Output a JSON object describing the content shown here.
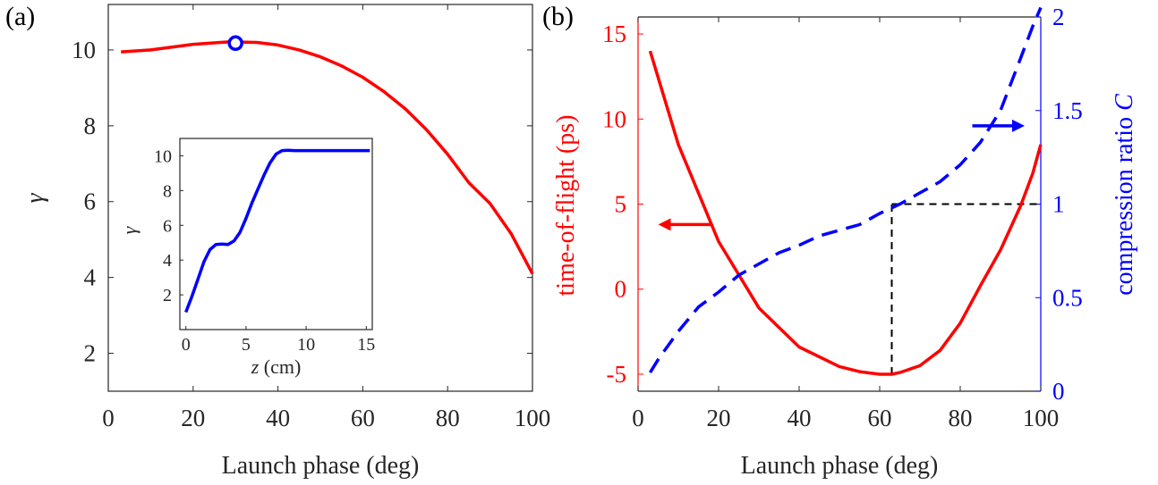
{
  "panels": {
    "a": {
      "label": "(a)"
    },
    "b": {
      "label": "(b)"
    }
  },
  "chart_data": [
    {
      "id": "a-main",
      "type": "line",
      "xlabel": "Launch phase (deg)",
      "ylabel": "γ",
      "xlim": [
        0,
        100
      ],
      "ylim": [
        1,
        11.2
      ],
      "xticks": [
        "0",
        "20",
        "40",
        "60",
        "80",
        "100"
      ],
      "yticks": [
        "2",
        "4",
        "6",
        "8",
        "10"
      ],
      "grid": false,
      "series": [
        {
          "color": "#ff0000",
          "x": [
            3,
            10,
            20,
            28,
            30,
            35,
            40,
            45,
            50,
            55,
            60,
            65,
            70,
            75,
            80,
            85,
            90,
            95,
            100
          ],
          "y": [
            9.95,
            10.0,
            10.15,
            10.21,
            10.21,
            10.2,
            10.13,
            10.0,
            9.82,
            9.58,
            9.28,
            8.9,
            8.45,
            7.9,
            7.25,
            6.5,
            5.95,
            5.15,
            4.1
          ]
        }
      ],
      "marker": {
        "x": 30,
        "y": 10.18,
        "color": "#0000ff",
        "shape": "open-circle"
      }
    },
    {
      "id": "a-inset",
      "type": "line",
      "xlabel_italic": "z",
      "xlabel_rest": " (cm)",
      "ylabel": "γ",
      "xlim": [
        -0.5,
        15.5
      ],
      "ylim": [
        0,
        11
      ],
      "xticks": [
        "0",
        "5",
        "10",
        "15"
      ],
      "yticks": [
        "2",
        "4",
        "6",
        "8",
        "10"
      ],
      "grid": false,
      "series": [
        {
          "color": "#0000ff",
          "x": [
            0,
            0.5,
            1,
            1.5,
            2,
            2.5,
            3,
            3.5,
            4,
            4.5,
            5,
            5.5,
            6,
            6.5,
            7,
            7.5,
            8,
            8.5,
            9,
            10,
            12,
            15.3
          ],
          "y": [
            1.0,
            1.9,
            2.9,
            3.9,
            4.6,
            4.9,
            4.92,
            4.9,
            5.1,
            5.6,
            6.4,
            7.3,
            8.1,
            8.9,
            9.6,
            10.1,
            10.3,
            10.32,
            10.3,
            10.3,
            10.3,
            10.3
          ]
        }
      ]
    },
    {
      "id": "b-main",
      "type": "line",
      "xlabel": "Launch phase (deg)",
      "ylabel_left": "time-of-flight (ps)",
      "ylabel_right_text": "compression ratio ",
      "ylabel_right_italic": "C",
      "xlim": [
        0,
        100
      ],
      "ylim_left": [
        -6,
        16
      ],
      "ylim_right": [
        0,
        2
      ],
      "xticks": [
        "0",
        "20",
        "40",
        "60",
        "80",
        "100"
      ],
      "yticks_left": [
        "-5",
        "0",
        "5",
        "10",
        "15"
      ],
      "yticks_right": [
        "0",
        "0.5",
        "1",
        "1.5",
        "2"
      ],
      "left_axis_color": "#ff0000",
      "right_axis_color": "#0000ff",
      "grid": false,
      "series": [
        {
          "axis": "left",
          "color": "#ff0000",
          "dash": "solid",
          "x": [
            3,
            10,
            20,
            30,
            40,
            50,
            55,
            60,
            63,
            65,
            70,
            75,
            80,
            85,
            90,
            95,
            98,
            100
          ],
          "y": [
            14,
            8.5,
            2.8,
            -1.1,
            -3.4,
            -4.55,
            -4.85,
            -5.0,
            -5.0,
            -4.9,
            -4.5,
            -3.6,
            -2.0,
            0.2,
            2.3,
            4.9,
            6.8,
            8.5
          ]
        },
        {
          "axis": "right",
          "color": "#0000ff",
          "dash": "dashed",
          "x": [
            3,
            5,
            10,
            15,
            20,
            25,
            30,
            35,
            40,
            45,
            50,
            55,
            60,
            65,
            70,
            75,
            80,
            85,
            90,
            95,
            98,
            100
          ],
          "y": [
            0.1,
            0.17,
            0.32,
            0.45,
            0.53,
            0.62,
            0.68,
            0.74,
            0.78,
            0.83,
            0.86,
            0.89,
            0.95,
            1.0,
            1.06,
            1.12,
            1.21,
            1.33,
            1.5,
            1.78,
            1.95,
            2.05
          ]
        }
      ],
      "guides": [
        {
          "x1": 63,
          "y1": -5,
          "x2": 63,
          "y2": 5,
          "axis": "left"
        },
        {
          "x1": 63,
          "y1": 5,
          "x2": 100,
          "y2": 5,
          "axis": "left"
        }
      ],
      "arrows": [
        {
          "from_x": 18,
          "from_y": 3.8,
          "to_x": 5,
          "to_y": 3.8,
          "axis": "left",
          "color": "#ff0000"
        },
        {
          "from_x": 83,
          "from_y": 9.6,
          "to_x": 96,
          "to_y": 9.6,
          "axis": "left",
          "color": "#0000ff"
        }
      ]
    }
  ]
}
